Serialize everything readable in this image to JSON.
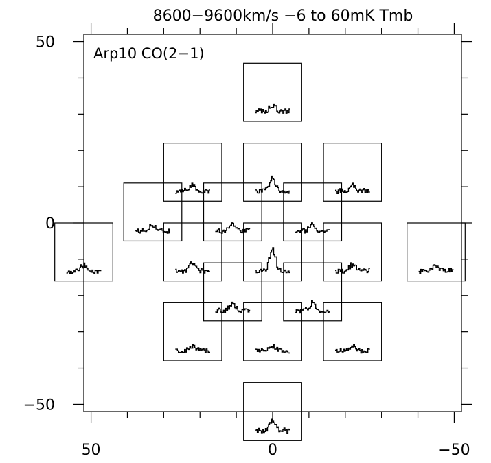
{
  "chart_data": {
    "type": "spectral-map",
    "header": "8600−9600km/s   −6 to 60mK Tmb",
    "label": "Arp10 CO(2−1)",
    "x_axis": {
      "range": [
        52,
        -52
      ],
      "ticks": [
        50,
        0,
        -50
      ],
      "tick_labels": [
        "50",
        "0",
        "−50"
      ]
    },
    "y_axis": {
      "range": [
        -52,
        52
      ],
      "ticks": [
        50,
        0,
        -50
      ],
      "tick_labels": [
        "50",
        "0",
        "−50"
      ]
    },
    "velocity_range_kms": [
      8600,
      9600
    ],
    "temperature_range_mK": [
      -6,
      60
    ],
    "pointings": [
      {
        "x": 0,
        "y": 36,
        "peak": 14
      },
      {
        "x": 22,
        "y": 14,
        "peak": 16
      },
      {
        "x": 0,
        "y": 14,
        "peak": 30
      },
      {
        "x": -22,
        "y": 14,
        "peak": 18
      },
      {
        "x": 33,
        "y": 3,
        "peak": 14
      },
      {
        "x": 11,
        "y": 3,
        "peak": 18
      },
      {
        "x": -11,
        "y": 3,
        "peak": 16
      },
      {
        "x": 52,
        "y": -8,
        "peak": 12
      },
      {
        "x": 22,
        "y": -8,
        "peak": 20
      },
      {
        "x": 0,
        "y": -8,
        "peak": 55
      },
      {
        "x": -22,
        "y": -8,
        "peak": 16
      },
      {
        "x": -45,
        "y": -8,
        "peak": 14
      },
      {
        "x": 11,
        "y": -19,
        "peak": 18
      },
      {
        "x": -11,
        "y": -19,
        "peak": 20
      },
      {
        "x": 22,
        "y": -30,
        "peak": 10
      },
      {
        "x": 0,
        "y": -30,
        "peak": 12
      },
      {
        "x": -22,
        "y": -30,
        "peak": 10
      },
      {
        "x": 0,
        "y": -52,
        "peak": 24
      }
    ]
  }
}
